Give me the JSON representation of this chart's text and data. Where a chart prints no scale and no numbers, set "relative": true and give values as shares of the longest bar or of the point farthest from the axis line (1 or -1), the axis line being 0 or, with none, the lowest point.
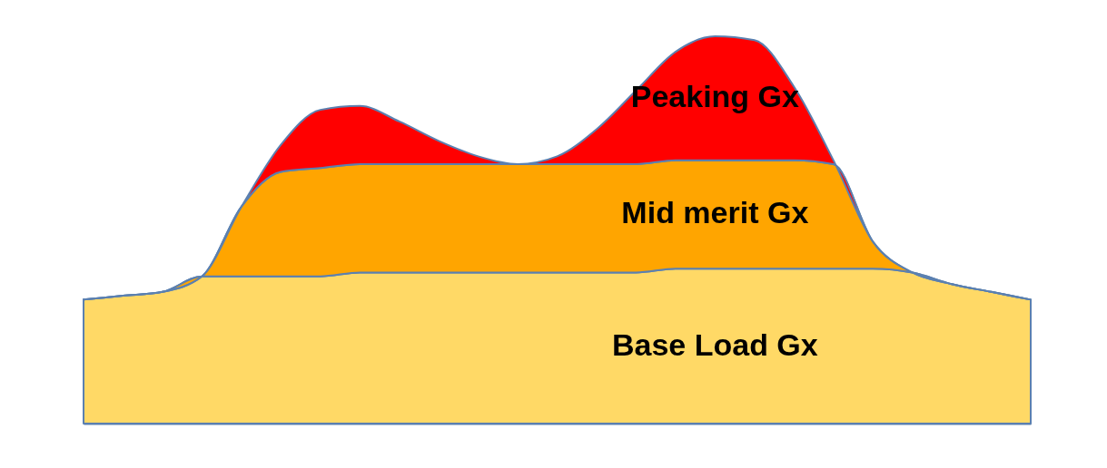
{
  "chart_data": {
    "type": "area",
    "relative": true,
    "stacked": true,
    "categories": [
      null,
      null,
      null,
      null,
      null,
      null,
      null,
      null,
      null,
      null,
      null,
      null,
      null,
      null,
      null,
      null,
      null,
      null,
      null,
      null,
      null,
      null,
      null,
      null,
      null
    ],
    "series": [
      {
        "name": "Base Load Gx",
        "color": "#ffd966",
        "values": [
          0.32,
          0.33,
          0.34,
          0.38,
          0.38,
          0.38,
          0.38,
          0.39,
          0.39,
          0.39,
          0.39,
          0.39,
          0.39,
          0.39,
          0.39,
          0.4,
          0.4,
          0.4,
          0.4,
          0.4,
          0.4,
          0.39,
          0.36,
          0.34,
          0.32
        ]
      },
      {
        "name": "Mid merit Gx",
        "color": "#ffa500",
        "values": [
          0,
          0,
          0,
          0,
          0.18,
          0.27,
          0.28,
          0.28,
          0.28,
          0.28,
          0.28,
          0.28,
          0.28,
          0.28,
          0.28,
          0.28,
          0.28,
          0.28,
          0.28,
          0.27,
          0.07,
          0,
          0,
          0,
          0
        ]
      },
      {
        "name": "Peaking Gx",
        "color": "#ff0000",
        "values": [
          0,
          0,
          0,
          0,
          0,
          0.07,
          0.15,
          0.15,
          0.11,
          0.06,
          0.02,
          0,
          0.02,
          0.09,
          0.19,
          0.28,
          0.32,
          0.31,
          0.19,
          0.01,
          0,
          0,
          0,
          0,
          0
        ]
      }
    ]
  }
}
